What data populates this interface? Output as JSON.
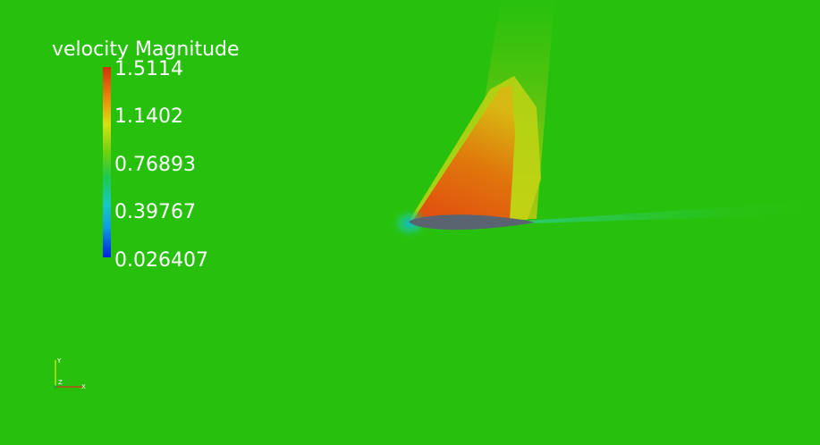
{
  "legend": {
    "title": "velocity Magnitude",
    "ticks": [
      "1.5114",
      "1.1402",
      "0.76893",
      "0.39767",
      "0.026407"
    ],
    "colors": {
      "max": "#d6300a",
      "high": "#e8a010",
      "mid_high": "#d8e014",
      "mid": "#20c850",
      "low": "#18c8c0",
      "min": "#0020e0"
    }
  },
  "axes": {
    "x_label": "X",
    "y_label": "Y",
    "z_label": "Z"
  },
  "scene": {
    "background_color": "#27c10d",
    "airfoil_color": "#5a6470"
  }
}
